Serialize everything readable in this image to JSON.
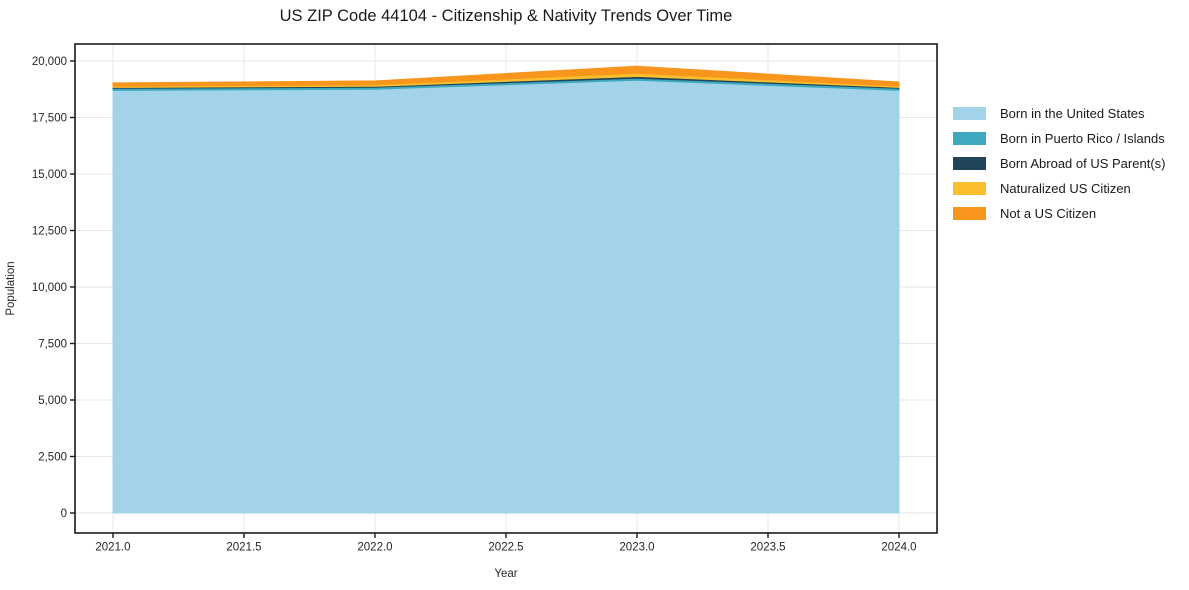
{
  "figure": {
    "title": "US ZIP Code 44104 - Citizenship & Nativity Trends Over Time"
  },
  "chart_data": {
    "type": "area",
    "stacked": true,
    "title": "US ZIP Code 44104 - Citizenship & Nativity Trends Over Time",
    "xlabel": "Year",
    "ylabel": "Population",
    "x": [
      2021,
      2022,
      2023,
      2024
    ],
    "series": [
      {
        "name": "Born in the United States",
        "color": "#a3d3e8",
        "values": [
          18700,
          18750,
          19150,
          18700
        ]
      },
      {
        "name": "Born in Puerto Rico / Islands",
        "color": "#3ea8bf",
        "values": [
          90,
          90,
          90,
          90
        ]
      },
      {
        "name": "Born Abroad of US Parent(s)",
        "color": "#20455a",
        "values": [
          40,
          40,
          80,
          40
        ]
      },
      {
        "name": "Naturalized US Citizen",
        "color": "#fbbe2c",
        "values": [
          50,
          70,
          140,
          60
        ]
      },
      {
        "name": "Not a US Citizen",
        "color": "#f8951d",
        "values": [
          150,
          170,
          310,
          180
        ]
      }
    ],
    "totals": [
      19030,
      19120,
      19770,
      19070
    ],
    "xlim": [
      2020.855,
      2024.145
    ],
    "ylim": [
      -885,
      20752
    ],
    "x_ticks": {
      "values": [
        2021.0,
        2021.5,
        2022.0,
        2022.5,
        2023.0,
        2023.5,
        2024.0
      ],
      "labels": [
        "2021.0",
        "2021.5",
        "2022.0",
        "2022.5",
        "2023.0",
        "2023.5",
        "2024.0"
      ]
    },
    "y_ticks": {
      "values": [
        0,
        2500,
        5000,
        7500,
        10000,
        12500,
        15000,
        17500,
        20000
      ],
      "labels": [
        "0",
        "2,500",
        "5,000",
        "7,500",
        "10,000",
        "12,500",
        "15,000",
        "17,500",
        "20,000"
      ]
    },
    "grid": true,
    "legend_position": "right-outside",
    "colors": {
      "background": "#ffffff",
      "spine": "#1a1a1a",
      "grid": "#e7e7e7",
      "tick_label": "#262626",
      "axis_label": "#262626",
      "title": "#1a1a1a"
    }
  }
}
